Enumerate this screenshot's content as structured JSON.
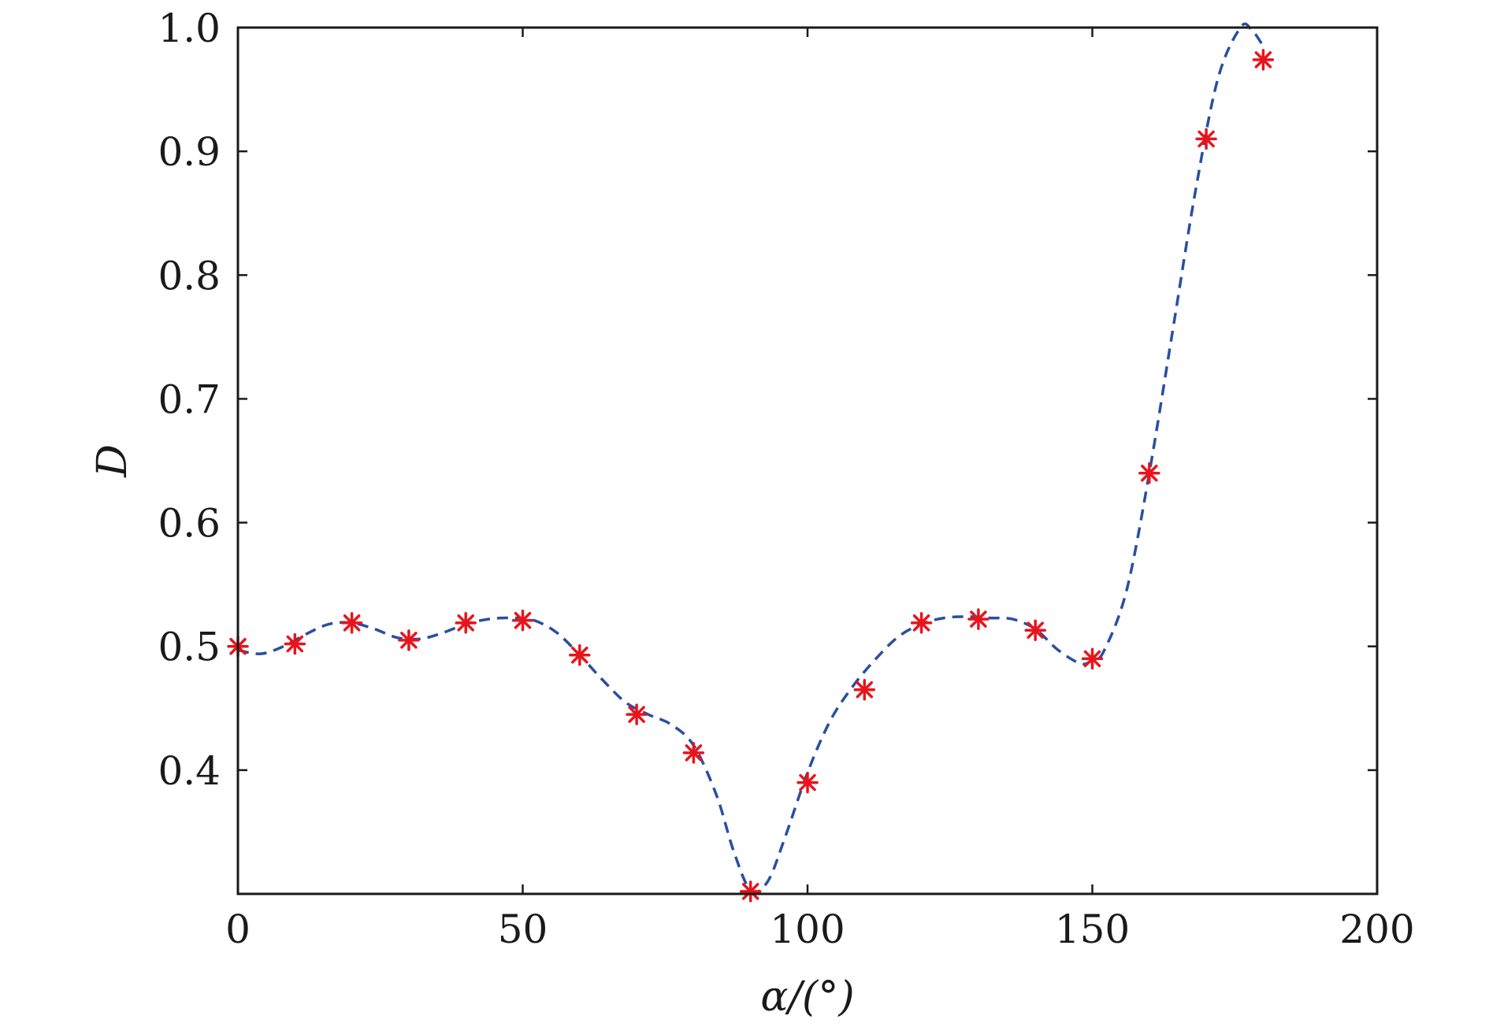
{
  "chart_data": {
    "type": "line",
    "title": "",
    "xlabel": "α/(°)",
    "ylabel": "D",
    "xlim": [
      0,
      200
    ],
    "ylim": [
      0.3,
      1.0
    ],
    "x_ticks": [
      0,
      50,
      100,
      150,
      200
    ],
    "y_ticks": [
      0.4,
      0.5,
      0.6,
      0.7,
      0.8,
      0.9,
      1.0
    ],
    "x_tick_labels": [
      "0",
      "50",
      "100",
      "150",
      "200"
    ],
    "y_tick_labels": [
      "0.4",
      "0.5",
      "0.6",
      "0.7",
      "0.8",
      "0.9",
      "1.0"
    ],
    "grid": false,
    "legend": "none",
    "colors": {
      "fit_line": "#2a4fa0",
      "markers": "#e8141c",
      "axes": "#1a1a1a"
    },
    "series": [
      {
        "kind": "markers",
        "marker": "asterisk",
        "x": [
          0,
          10,
          20,
          30,
          40,
          50,
          60,
          70,
          80,
          90,
          100,
          110,
          120,
          130,
          140,
          150,
          160,
          170,
          180
        ],
        "y": [
          0.5,
          0.502,
          0.519,
          0.505,
          0.519,
          0.521,
          0.493,
          0.445,
          0.414,
          0.302,
          0.39,
          0.465,
          0.519,
          0.522,
          0.513,
          0.49,
          0.64,
          0.91,
          0.974
        ]
      },
      {
        "kind": "dashed-line",
        "x": [
          0,
          4,
          8,
          12,
          16,
          20,
          24,
          28,
          32,
          36,
          40,
          44,
          48,
          52,
          56,
          60,
          64,
          68,
          72,
          76,
          80,
          84,
          87,
          90,
          93,
          96,
          100,
          104,
          108,
          112,
          116,
          120,
          124,
          128,
          132,
          136,
          140,
          144,
          148,
          150,
          152,
          156,
          160,
          164,
          168,
          172,
          176,
          178,
          180
        ],
        "y": [
          0.497,
          0.494,
          0.5,
          0.51,
          0.518,
          0.519,
          0.514,
          0.507,
          0.506,
          0.511,
          0.518,
          0.522,
          0.523,
          0.521,
          0.511,
          0.493,
          0.473,
          0.455,
          0.445,
          0.437,
          0.42,
          0.38,
          0.335,
          0.303,
          0.31,
          0.345,
          0.398,
          0.44,
          0.468,
          0.49,
          0.508,
          0.518,
          0.523,
          0.524,
          0.523,
          0.522,
          0.514,
          0.497,
          0.486,
          0.489,
          0.496,
          0.545,
          0.64,
          0.752,
          0.865,
          0.958,
          1.0,
          0.998,
          0.985
        ]
      }
    ]
  }
}
